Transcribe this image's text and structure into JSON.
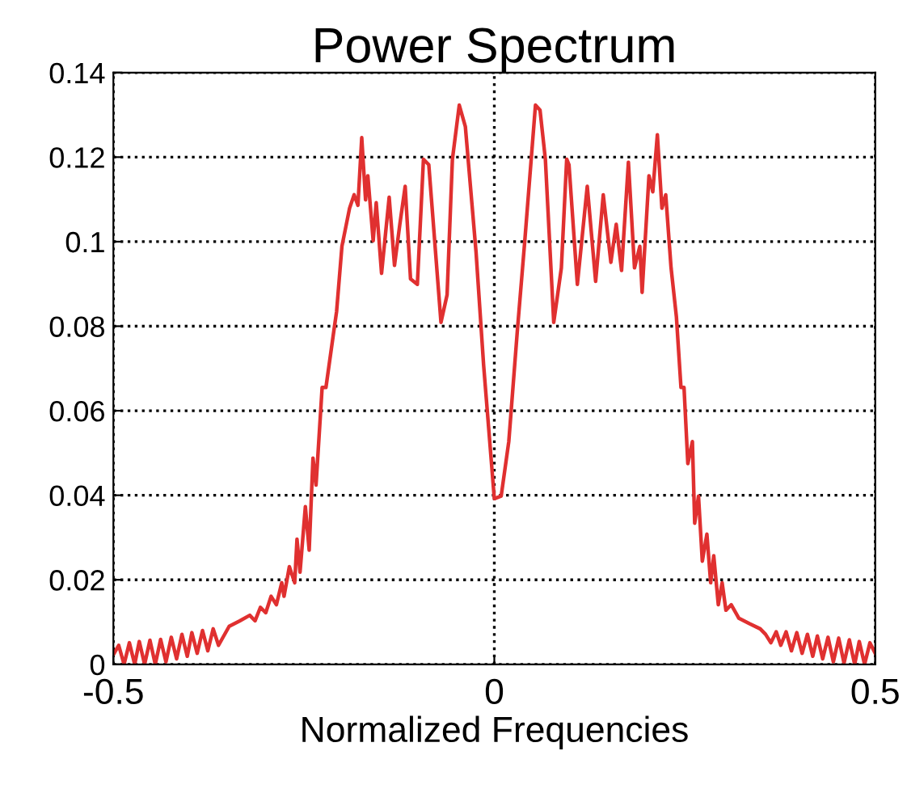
{
  "chart_data": {
    "type": "line",
    "title": "Power Spectrum",
    "xlabel": "Normalized Frequencies",
    "xlim": [
      -0.5,
      0.5
    ],
    "xticks": [
      -0.5,
      0,
      0.5
    ],
    "ylim": [
      0,
      0.14
    ],
    "yticks": [
      0,
      0.02,
      0.04,
      0.06,
      0.08,
      0.1,
      0.12,
      0.14
    ],
    "grid": true,
    "marker": "none",
    "line_style": "solid",
    "series": [
      {
        "color": "#e03030",
        "x": [
          -0.499,
          -0.493,
          -0.486,
          -0.479,
          -0.472,
          -0.466,
          -0.459,
          -0.452,
          -0.445,
          -0.438,
          -0.431,
          -0.424,
          -0.417,
          -0.41,
          -0.403,
          -0.397,
          -0.39,
          -0.383,
          -0.376,
          -0.369,
          -0.362,
          -0.348,
          -0.334,
          -0.321,
          -0.314,
          -0.307,
          -0.3,
          -0.293,
          -0.286,
          -0.279,
          -0.276,
          -0.269,
          -0.262,
          -0.259,
          -0.255,
          -0.248,
          -0.243,
          -0.238,
          -0.234,
          -0.226,
          -0.221,
          -0.21,
          -0.207,
          -0.2,
          -0.19,
          -0.184,
          -0.179,
          -0.174,
          -0.169,
          -0.166,
          -0.159,
          -0.155,
          -0.148,
          -0.138,
          -0.131,
          -0.124,
          -0.117,
          -0.11,
          -0.101,
          -0.093,
          -0.086,
          -0.07,
          -0.062,
          -0.055,
          -0.046,
          -0.038,
          -0.024,
          -0.014,
          0,
          0.009,
          0.019,
          0.03,
          0.04,
          0.054,
          0.06,
          0.067,
          0.078,
          0.088,
          0.095,
          0.098,
          0.109,
          0.122,
          0.133,
          0.143,
          0.153,
          0.16,
          0.167,
          0.176,
          0.184,
          0.191,
          0.194,
          0.203,
          0.208,
          0.214,
          0.22,
          0.225,
          0.232,
          0.239,
          0.245,
          0.249,
          0.254,
          0.26,
          0.263,
          0.268,
          0.273,
          0.279,
          0.284,
          0.288,
          0.294,
          0.299,
          0.304,
          0.311,
          0.321,
          0.335,
          0.349,
          0.356,
          0.363,
          0.37,
          0.376,
          0.383,
          0.39,
          0.397,
          0.404,
          0.411,
          0.418,
          0.424,
          0.431,
          0.438,
          0.445,
          0.452,
          0.459,
          0.466,
          0.473,
          0.479,
          0.486,
          0.493,
          0.5
        ],
        "values": [
          0.0026,
          0.0045,
          0,
          0.0051,
          0,
          0.0054,
          0,
          0.0057,
          0,
          0.0059,
          0.0006,
          0.0064,
          0.0013,
          0.0071,
          0.0019,
          0.0075,
          0.0026,
          0.008,
          0.0032,
          0.0084,
          0.0045,
          0.009,
          0.0103,
          0.0116,
          0.0103,
          0.0135,
          0.0122,
          0.0161,
          0.0141,
          0.0193,
          0.0161,
          0.0231,
          0.0193,
          0.0296,
          0.0218,
          0.0373,
          0.027,
          0.0488,
          0.0424,
          0.0655,
          0.0655,
          0.0797,
          0.0835,
          0.0989,
          0.1079,
          0.1111,
          0.1086,
          0.1246,
          0.1099,
          0.1156,
          0.1002,
          0.1092,
          0.0925,
          0.1105,
          0.0944,
          0.1041,
          0.1131,
          0.0912,
          0.0899,
          0.1195,
          0.1182,
          0.0809,
          0.0874,
          0.1195,
          0.1323,
          0.1272,
          0.0976,
          0.0707,
          0.0392,
          0.0398,
          0.0527,
          0.0784,
          0.1002,
          0.1323,
          0.1311,
          0.1195,
          0.0809,
          0.0938,
          0.1195,
          0.1182,
          0.0899,
          0.1131,
          0.0906,
          0.1111,
          0.0951,
          0.1041,
          0.0932,
          0.1188,
          0.0938,
          0.0989,
          0.088,
          0.1156,
          0.1118,
          0.1253,
          0.1079,
          0.1111,
          0.0938,
          0.0822,
          0.0655,
          0.0655,
          0.0475,
          0.0527,
          0.0334,
          0.0398,
          0.0244,
          0.0308,
          0.0193,
          0.0257,
          0.0141,
          0.0193,
          0.0128,
          0.0141,
          0.0109,
          0.0096,
          0.0084,
          0.0071,
          0.0051,
          0.0077,
          0.0045,
          0.0077,
          0.0032,
          0.0075,
          0.0026,
          0.0071,
          0.0019,
          0.0067,
          0.0013,
          0.0064,
          0.0006,
          0.0062,
          0.0003,
          0.0058,
          0,
          0.0054,
          0,
          0.0051,
          0.0026
        ]
      }
    ]
  }
}
